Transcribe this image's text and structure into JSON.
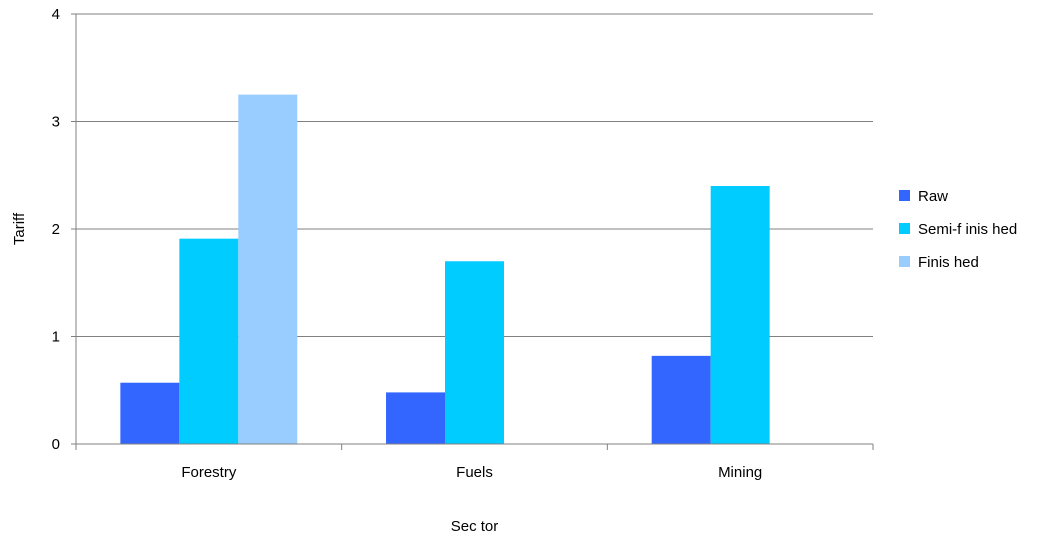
{
  "chart_data": {
    "type": "bar",
    "title": "",
    "xlabel": "Sec tor",
    "ylabel": "Tariff",
    "categories": [
      "Forestry",
      "Fuels",
      "Mining"
    ],
    "series": [
      {
        "name": "Raw",
        "values": [
          0.57,
          0.48,
          0.82
        ],
        "color": "#3366ff"
      },
      {
        "name": "Semi-f inis hed",
        "values": [
          1.91,
          1.7,
          2.4
        ],
        "color": "#00ccff"
      },
      {
        "name": "Finis hed",
        "values": [
          3.25,
          null,
          null
        ],
        "color": "#99ccff"
      }
    ],
    "ylim": [
      0,
      4
    ],
    "yticks": [
      "0",
      "1",
      "2",
      "3",
      "4"
    ],
    "grid": true,
    "legend": "right"
  }
}
